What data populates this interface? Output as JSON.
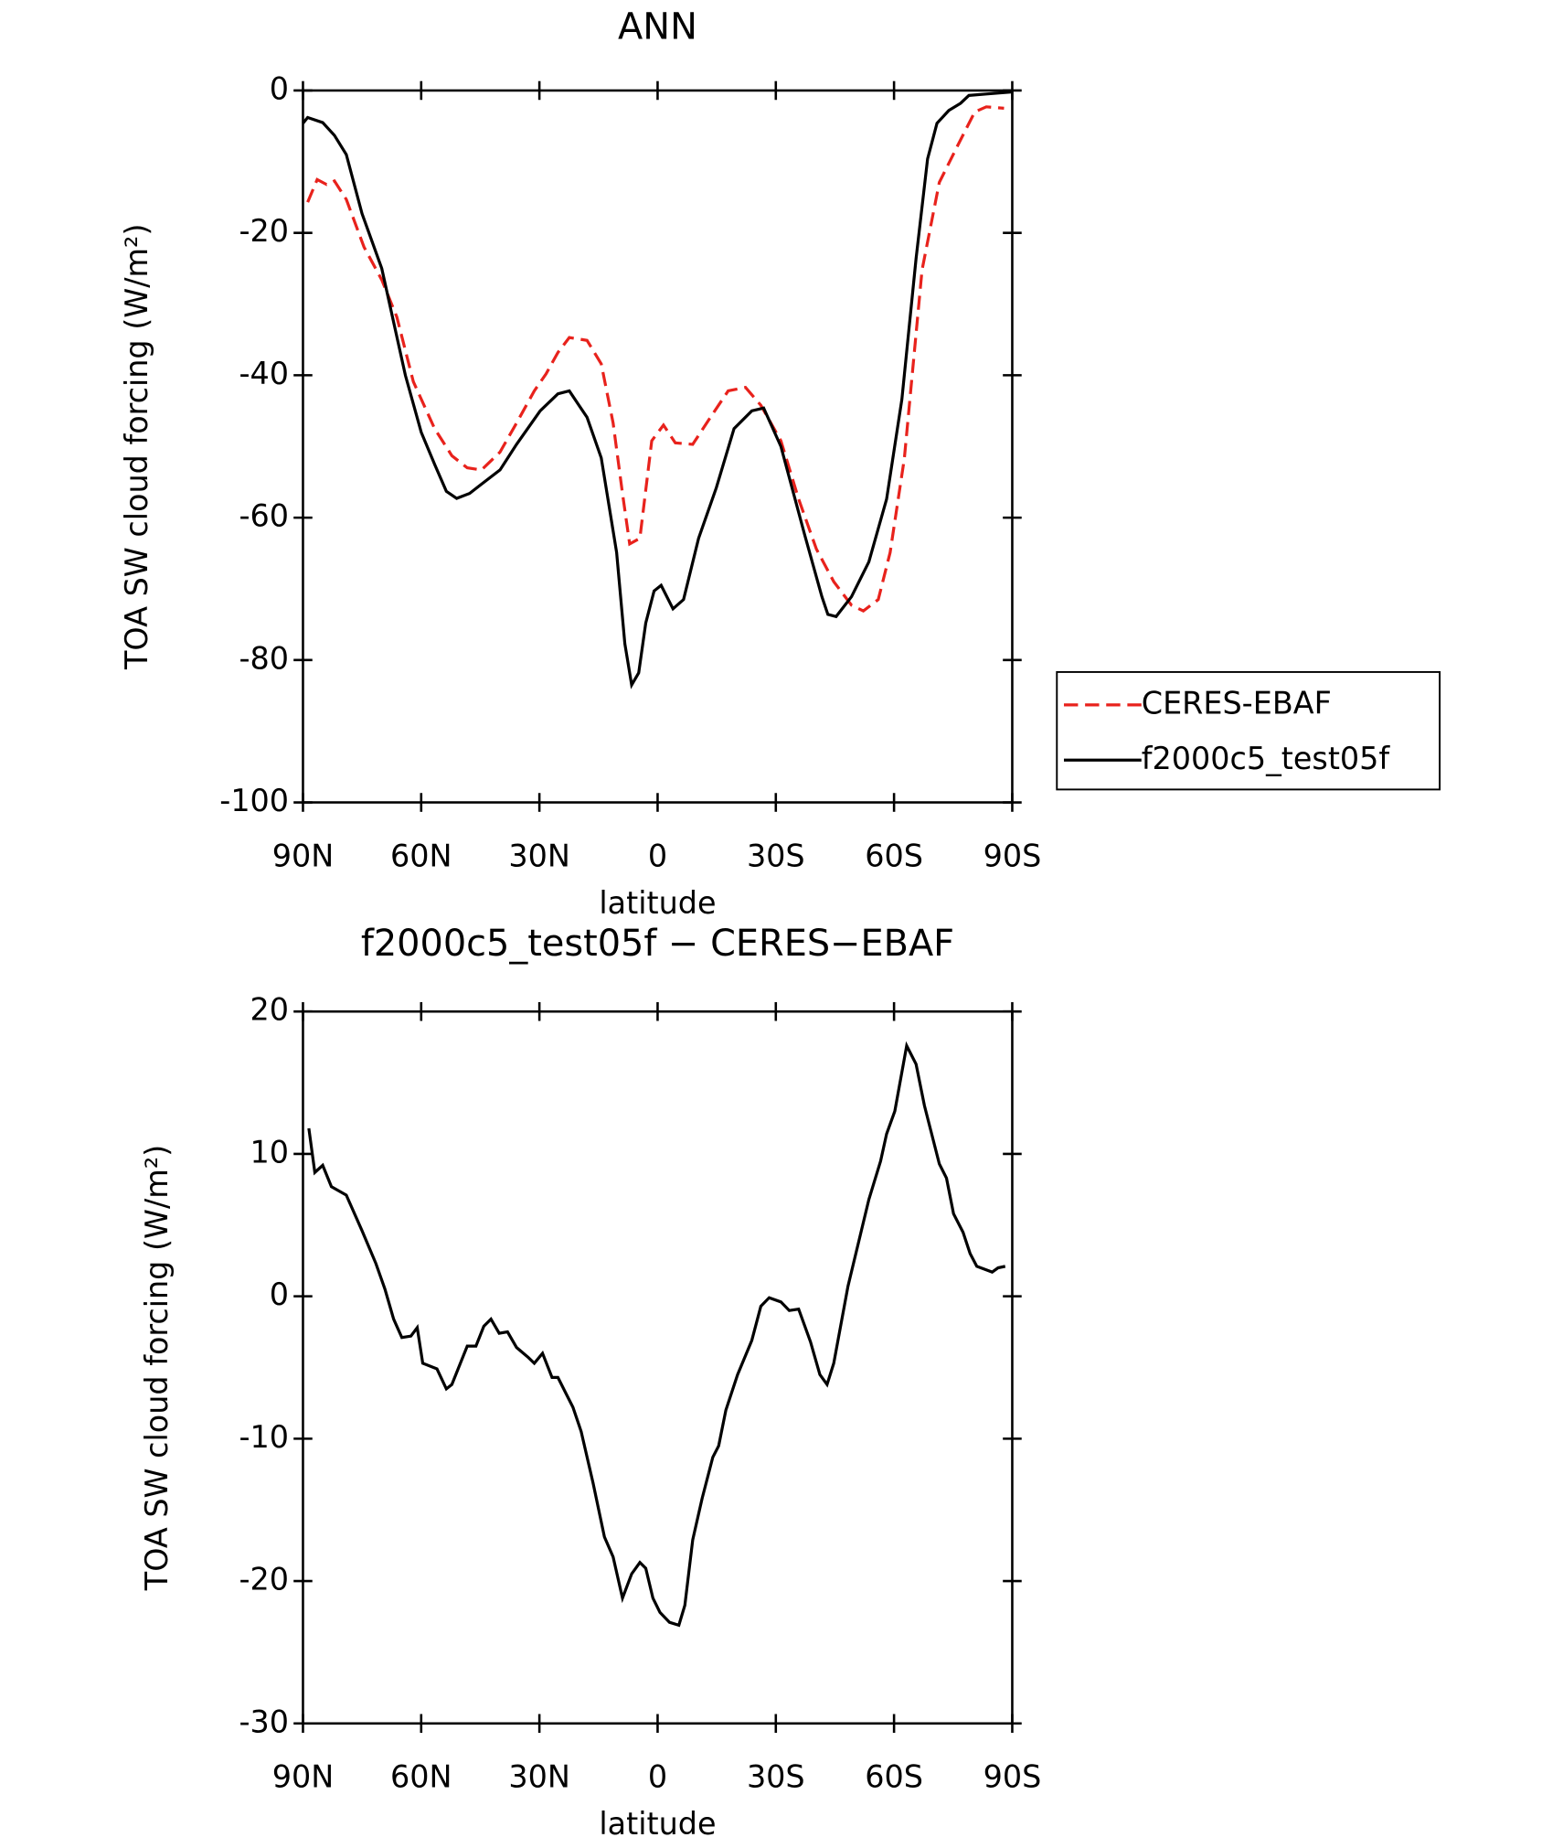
{
  "chart_data": [
    {
      "type": "line",
      "title": "ANN",
      "xlabel": "latitude",
      "ylabel": "TOA SW cloud forcing (W/m²)",
      "xlim": [
        90,
        -90
      ],
      "ylim": [
        -100,
        0
      ],
      "xticks": [
        {
          "value": 90,
          "label": "90N"
        },
        {
          "value": 60,
          "label": "60N"
        },
        {
          "value": 30,
          "label": "30N"
        },
        0,
        {
          "value": -30,
          "label": "30S"
        },
        {
          "value": -60,
          "label": "60S"
        },
        {
          "value": -90,
          "label": "90S"
        }
      ],
      "yticks": [
        -100,
        -80,
        -60,
        -40,
        -20,
        0
      ],
      "legend": "right",
      "series": [
        {
          "name": "CERES-EBAF",
          "color": "#e8221c",
          "dash": true,
          "x": [
            88.8,
            86.4,
            84,
            82,
            79,
            74.5,
            70,
            66.2,
            62,
            56.6,
            52.2,
            48.3,
            44.7,
            40,
            35.8,
            31.3,
            28.3,
            25.3,
            22.4,
            17.9,
            14.3,
            11.3,
            8.9,
            7.1,
            4.5,
            1.5,
            -1.5,
            -4.5,
            -8.9,
            -13.4,
            -17.9,
            -22.3,
            -26.2,
            -31.3,
            -35.8,
            -40.3,
            -44.7,
            -49.2,
            -52.2,
            -56,
            -59,
            -62.6,
            -67.1,
            -71.5,
            -76,
            -80.5,
            -83.4,
            -87.9
          ],
          "values": [
            -15.7,
            -12.5,
            -13.2,
            -12.7,
            -15.3,
            -22,
            -26.6,
            -31.8,
            -40.9,
            -47.5,
            -51.3,
            -53,
            -53.3,
            -50.8,
            -46.7,
            -42.2,
            -39.8,
            -36.8,
            -34.7,
            -35.1,
            -38.4,
            -46.7,
            -56.6,
            -63.7,
            -62.9,
            -49.2,
            -47,
            -49.5,
            -49.7,
            -45.9,
            -42.2,
            -41.7,
            -44.2,
            -49.2,
            -57.4,
            -64.4,
            -69,
            -72.3,
            -73.1,
            -71.5,
            -64.9,
            -51.7,
            -25.2,
            -12.9,
            -7.9,
            -3,
            -2.3,
            -2.5
          ]
        },
        {
          "name": "f2000c5_test05f",
          "color": "#000000",
          "dash": false,
          "x": [
            90,
            88.8,
            85,
            82,
            79,
            75,
            70,
            64,
            60,
            56.6,
            53.6,
            51,
            47.7,
            44.7,
            40,
            35.8,
            29.8,
            25.3,
            22.4,
            17.9,
            14.3,
            10.4,
            8.3,
            6.6,
            4.8,
            3,
            0.9,
            -0.9,
            -3.9,
            -6.6,
            -10.4,
            -14.9,
            -19.4,
            -23.9,
            -26.9,
            -31.3,
            -37.3,
            -41.7,
            -43.2,
            -45.3,
            -49.2,
            -53.6,
            -58.1,
            -62,
            -65.6,
            -68.5,
            -70.9,
            -73.9,
            -76.9,
            -79,
            -83.4,
            -90
          ],
          "values": [
            -4.6,
            -3.8,
            -4.5,
            -6.3,
            -9,
            -17.3,
            -25,
            -40,
            -48,
            -52.5,
            -56.3,
            -57.3,
            -56.6,
            -55.3,
            -53.3,
            -49.7,
            -45,
            -42.6,
            -42.2,
            -45.9,
            -51.6,
            -64.9,
            -77.7,
            -83.5,
            -81.8,
            -74.8,
            -70.3,
            -69.5,
            -72.8,
            -71.5,
            -62.9,
            -55.8,
            -47.5,
            -45,
            -44.6,
            -50,
            -62.4,
            -71.1,
            -73.6,
            -73.9,
            -71.1,
            -66.2,
            -57.4,
            -43.4,
            -23.6,
            -9.6,
            -4.6,
            -2.8,
            -1.8,
            -0.7,
            -0.5,
            -0.2
          ]
        }
      ]
    },
    {
      "type": "line",
      "title": "f2000c5_test05f − CERES−EBAF",
      "xlabel": "latitude",
      "ylabel": "TOA SW cloud forcing (W/m²)",
      "xlim": [
        90,
        -90
      ],
      "ylim": [
        -30,
        20
      ],
      "xticks": [
        {
          "value": 90,
          "label": "90N"
        },
        {
          "value": 60,
          "label": "60N"
        },
        {
          "value": 30,
          "label": "30N"
        },
        0,
        {
          "value": -30,
          "label": "30S"
        },
        {
          "value": -60,
          "label": "60S"
        },
        {
          "value": -90,
          "label": "90S"
        }
      ],
      "yticks": [
        -30,
        -20,
        -10,
        0,
        10,
        20
      ],
      "series": [
        {
          "color": "#000000",
          "dash": false,
          "x": [
            88.5,
            87,
            85,
            82.8,
            79,
            75,
            71.5,
            69.2,
            67,
            64.9,
            62.6,
            61,
            59.6,
            56,
            53.6,
            52.2,
            48.3,
            46.1,
            44.1,
            42.3,
            40.2,
            38.1,
            35.8,
            32.8,
            31.3,
            29.2,
            26.8,
            25.3,
            21.5,
            19.4,
            16.4,
            13.5,
            11.3,
            8.9,
            6.6,
            4.5,
            3,
            1.2,
            -0.6,
            -3,
            -5.4,
            -6.9,
            -8.9,
            -11.3,
            -14,
            -15.5,
            -17.3,
            -20.3,
            -23.9,
            -26.2,
            -28.3,
            -31.3,
            -33.4,
            -35.8,
            -38.8,
            -41.2,
            -43,
            -44.7,
            -48.3,
            -53.6,
            -56.6,
            -58.1,
            -60.2,
            -63.2,
            -65.6,
            -67.7,
            -71.5,
            -73.3,
            -75.1,
            -77.5,
            -79.3,
            -81,
            -84.9,
            -86.4,
            -88.2
          ],
          "values": [
            11.8,
            8.7,
            9.2,
            7.7,
            7.1,
            4.6,
            2.3,
            0.5,
            -1.6,
            -2.9,
            -2.8,
            -2.2,
            -4.7,
            -5.1,
            -6.5,
            -6.2,
            -3.5,
            -3.5,
            -2.1,
            -1.6,
            -2.6,
            -2.5,
            -3.6,
            -4.3,
            -4.7,
            -4,
            -5.7,
            -5.7,
            -7.8,
            -9.5,
            -13.1,
            -16.9,
            -18.3,
            -21.2,
            -19.5,
            -18.7,
            -19.1,
            -21.2,
            -22.2,
            -22.9,
            -23.1,
            -21.7,
            -17.1,
            -14.2,
            -11.3,
            -10.5,
            -8,
            -5.5,
            -3.1,
            -0.7,
            -0.1,
            -0.4,
            -1,
            -0.9,
            -3.2,
            -5.5,
            -6.2,
            -4.7,
            0.7,
            6.8,
            9.5,
            11.4,
            13,
            17.6,
            16.3,
            13.4,
            9.3,
            8.3,
            5.8,
            4.5,
            3,
            2.1,
            1.7,
            2,
            2.1
          ]
        }
      ]
    }
  ]
}
